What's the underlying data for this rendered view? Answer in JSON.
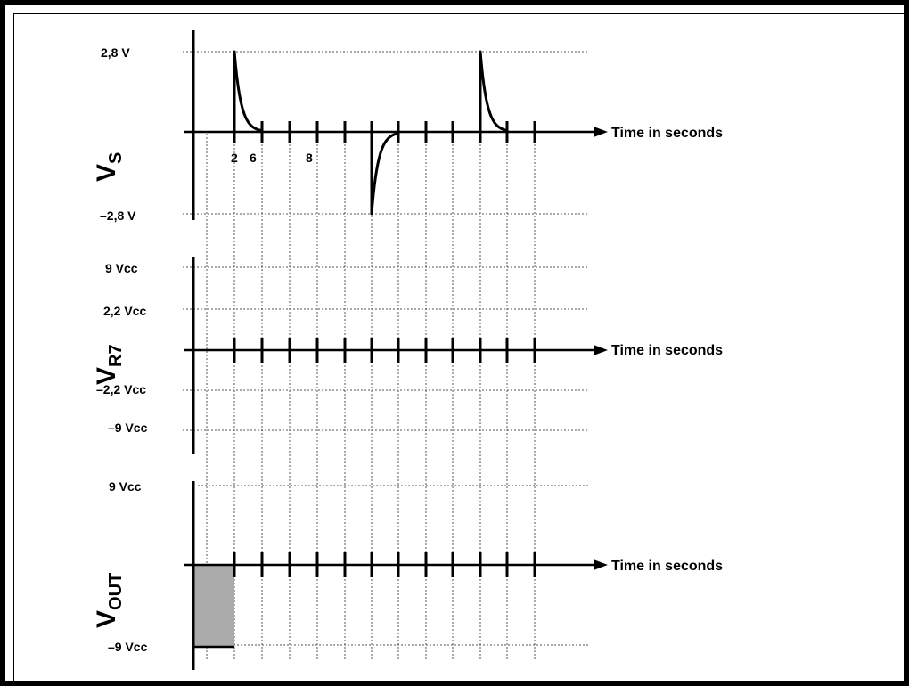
{
  "colors": {
    "ink": "#000000",
    "grid": "#555555",
    "shade": "#aaaaaa",
    "background": "#ffffff"
  },
  "axis_title": "Time in seconds",
  "panels": {
    "vs": {
      "ylabel_main": "V",
      "ylabel_sub": "S",
      "top_label": "2,8 V",
      "bottom_label": "–2,8 V",
      "tick_labels": {
        "t1": "2",
        "t2": "6",
        "t4": "8"
      },
      "pulses": [
        {
          "direction": "positive",
          "peak": "2,8 V"
        },
        {
          "direction": "negative",
          "peak": "–2,8 V"
        },
        {
          "direction": "positive",
          "peak": "2,8 V"
        }
      ]
    },
    "vr7": {
      "ylabel_main": "V",
      "ylabel_sub": "R7",
      "labels": [
        "9 Vcc",
        "2,2 Vcc",
        "–2,2 Vcc",
        "–9 Vcc"
      ]
    },
    "vout": {
      "ylabel_main": "V",
      "ylabel_sub": "OUT",
      "top_label": "9 Vcc",
      "bottom_label": "–9 Vcc"
    }
  }
}
